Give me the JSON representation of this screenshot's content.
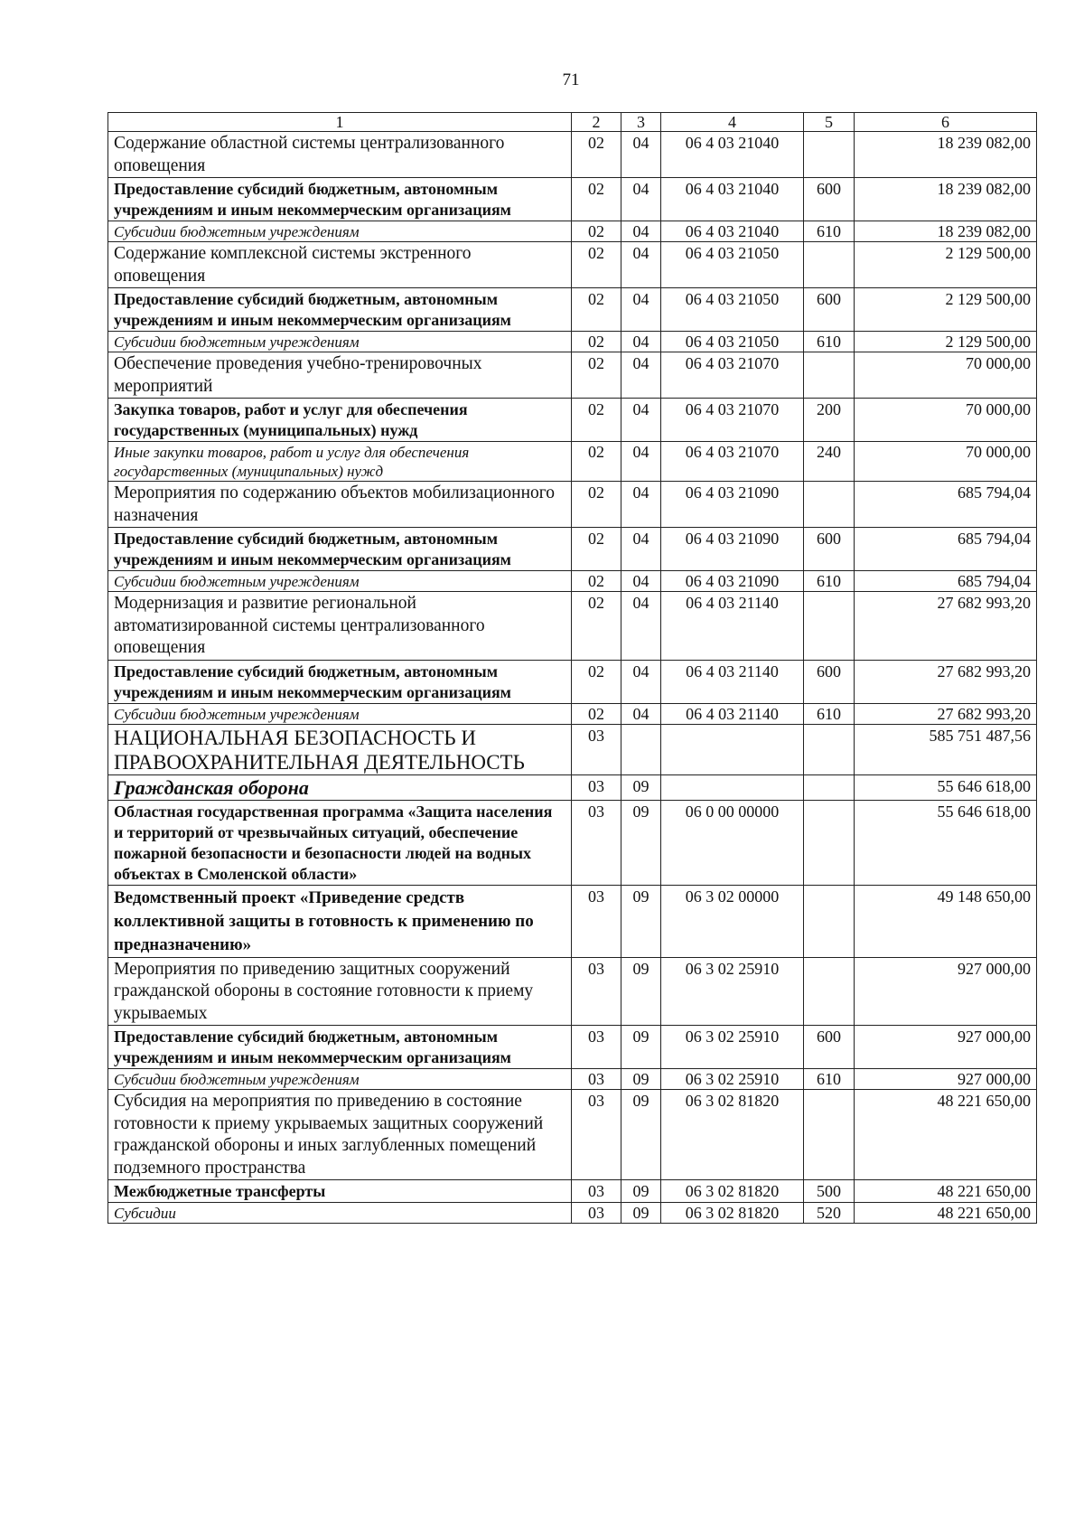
{
  "page_number": "71",
  "table": {
    "headers": [
      "1",
      "2",
      "3",
      "4",
      "5",
      "6"
    ],
    "rows": [
      {
        "style": "normal",
        "name": "Содержание областной системы централизованного оповещения",
        "rz": "02",
        "pr": "04",
        "csr": "06 4 03 21040",
        "vr": "",
        "sum": "18 239 082,00"
      },
      {
        "style": "bold",
        "name": "Предоставление субсидий бюджетным, автономным учреждениям и иным некоммерческим организациям",
        "rz": "02",
        "pr": "04",
        "csr": "06 4 03 21040",
        "vr": "600",
        "sum": "18 239 082,00"
      },
      {
        "style": "italic",
        "name": "Субсидии бюджетным учреждениям",
        "rz": "02",
        "pr": "04",
        "csr": "06 4 03 21040",
        "vr": "610",
        "sum": "18 239 082,00"
      },
      {
        "style": "normal",
        "name": "Содержание комплексной системы экстренного оповещения",
        "rz": "02",
        "pr": "04",
        "csr": "06 4 03 21050",
        "vr": "",
        "sum": "2 129 500,00"
      },
      {
        "style": "bold",
        "name": "Предоставление субсидий бюджетным, автономным учреждениям и иным некоммерческим организациям",
        "rz": "02",
        "pr": "04",
        "csr": "06 4 03 21050",
        "vr": "600",
        "sum": "2 129 500,00"
      },
      {
        "style": "italic",
        "name": "Субсидии бюджетным учреждениям",
        "rz": "02",
        "pr": "04",
        "csr": "06 4 03 21050",
        "vr": "610",
        "sum": "2 129 500,00"
      },
      {
        "style": "normal",
        "name": "Обеспечение проведения учебно-тренировочных мероприятий",
        "rz": "02",
        "pr": "04",
        "csr": "06 4 03 21070",
        "vr": "",
        "sum": "70 000,00"
      },
      {
        "style": "bold",
        "name": "Закупка товаров, работ и услуг для обеспечения государственных (муниципальных) нужд",
        "rz": "02",
        "pr": "04",
        "csr": "06 4 03 21070",
        "vr": "200",
        "sum": "70 000,00"
      },
      {
        "style": "italic",
        "name": "Иные закупки товаров, работ и услуг для обеспечения государственных (муниципальных) нужд",
        "rz": "02",
        "pr": "04",
        "csr": "06 4 03 21070",
        "vr": "240",
        "sum": "70 000,00"
      },
      {
        "style": "normal",
        "name": "Мероприятия по содержанию объектов мобилизационного назначения",
        "rz": "02",
        "pr": "04",
        "csr": "06 4 03 21090",
        "vr": "",
        "sum": "685 794,04"
      },
      {
        "style": "bold",
        "name": "Предоставление субсидий бюджетным, автономным учреждениям и иным некоммерческим организациям",
        "rz": "02",
        "pr": "04",
        "csr": "06 4 03 21090",
        "vr": "600",
        "sum": "685 794,04"
      },
      {
        "style": "italic",
        "name": "Субсидии бюджетным учреждениям",
        "rz": "02",
        "pr": "04",
        "csr": "06 4 03 21090",
        "vr": "610",
        "sum": "685 794,04"
      },
      {
        "style": "normal",
        "name": "Модернизация и развитие региональной автоматизированной системы централизованного оповещения",
        "rz": "02",
        "pr": "04",
        "csr": "06 4 03 21140",
        "vr": "",
        "sum": "27 682 993,20"
      },
      {
        "style": "bold",
        "name": "Предоставление субсидий бюджетным, автономным учреждениям и иным некоммерческим организациям",
        "rz": "02",
        "pr": "04",
        "csr": "06 4 03 21140",
        "vr": "600",
        "sum": "27 682 993,20"
      },
      {
        "style": "italic",
        "name": "Субсидии бюджетным учреждениям",
        "rz": "02",
        "pr": "04",
        "csr": "06 4 03 21140",
        "vr": "610",
        "sum": "27 682 993,20"
      },
      {
        "style": "section",
        "name": "НАЦИОНАЛЬНАЯ БЕЗОПАСНОСТЬ И ПРАВООХРАНИТЕЛЬНАЯ ДЕЯТЕЛЬНОСТЬ",
        "rz": "03",
        "pr": "",
        "csr": "",
        "vr": "",
        "sum": "585 751 487,56"
      },
      {
        "style": "subsection",
        "name": "Гражданская оборона",
        "rz": "03",
        "pr": "09",
        "csr": "",
        "vr": "",
        "sum": "55 646 618,00"
      },
      {
        "style": "bold",
        "name": "Областная государственная программа «Защита населения и территорий от чрезвычайных ситуаций, обеспечение пожарной безопасности и безопасности людей на водных объектах в Смоленской области»",
        "rz": "03",
        "pr": "09",
        "csr": "06 0 00 00000",
        "vr": "",
        "sum": "55 646 618,00"
      },
      {
        "style": "project",
        "name": "Ведомственный проект «Приведение средств коллективной защиты в готовность к применению по предназначению»",
        "rz": "03",
        "pr": "09",
        "csr": "06 3 02 00000",
        "vr": "",
        "sum": "49 148 650,00"
      },
      {
        "style": "normal",
        "name": "Мероприятия по приведению защитных сооружений гражданской обороны в состояние готовности к приему укрываемых",
        "rz": "03",
        "pr": "09",
        "csr": "06 3 02 25910",
        "vr": "",
        "sum": "927 000,00"
      },
      {
        "style": "bold",
        "name": "Предоставление субсидий бюджетным, автономным учреждениям и иным некоммерческим организациям",
        "rz": "03",
        "pr": "09",
        "csr": "06 3 02 25910",
        "vr": "600",
        "sum": "927 000,00"
      },
      {
        "style": "italic",
        "name": "Субсидии бюджетным учреждениям",
        "rz": "03",
        "pr": "09",
        "csr": "06 3 02 25910",
        "vr": "610",
        "sum": "927 000,00"
      },
      {
        "style": "normal",
        "name": "Субсидия на мероприятия по приведению в состояние готовности к приему укрываемых защитных сооружений гражданской обороны и иных заглубленных помещений подземного пространства",
        "rz": "03",
        "pr": "09",
        "csr": "06 3 02 81820",
        "vr": "",
        "sum": "48 221 650,00"
      },
      {
        "style": "bold",
        "name": "Межбюджетные трансферты",
        "rz": "03",
        "pr": "09",
        "csr": "06 3 02 81820",
        "vr": "500",
        "sum": "48 221 650,00"
      },
      {
        "style": "italic",
        "name": "Субсидии",
        "rz": "03",
        "pr": "09",
        "csr": "06 3 02 81820",
        "vr": "520",
        "sum": "48 221 650,00"
      }
    ]
  }
}
